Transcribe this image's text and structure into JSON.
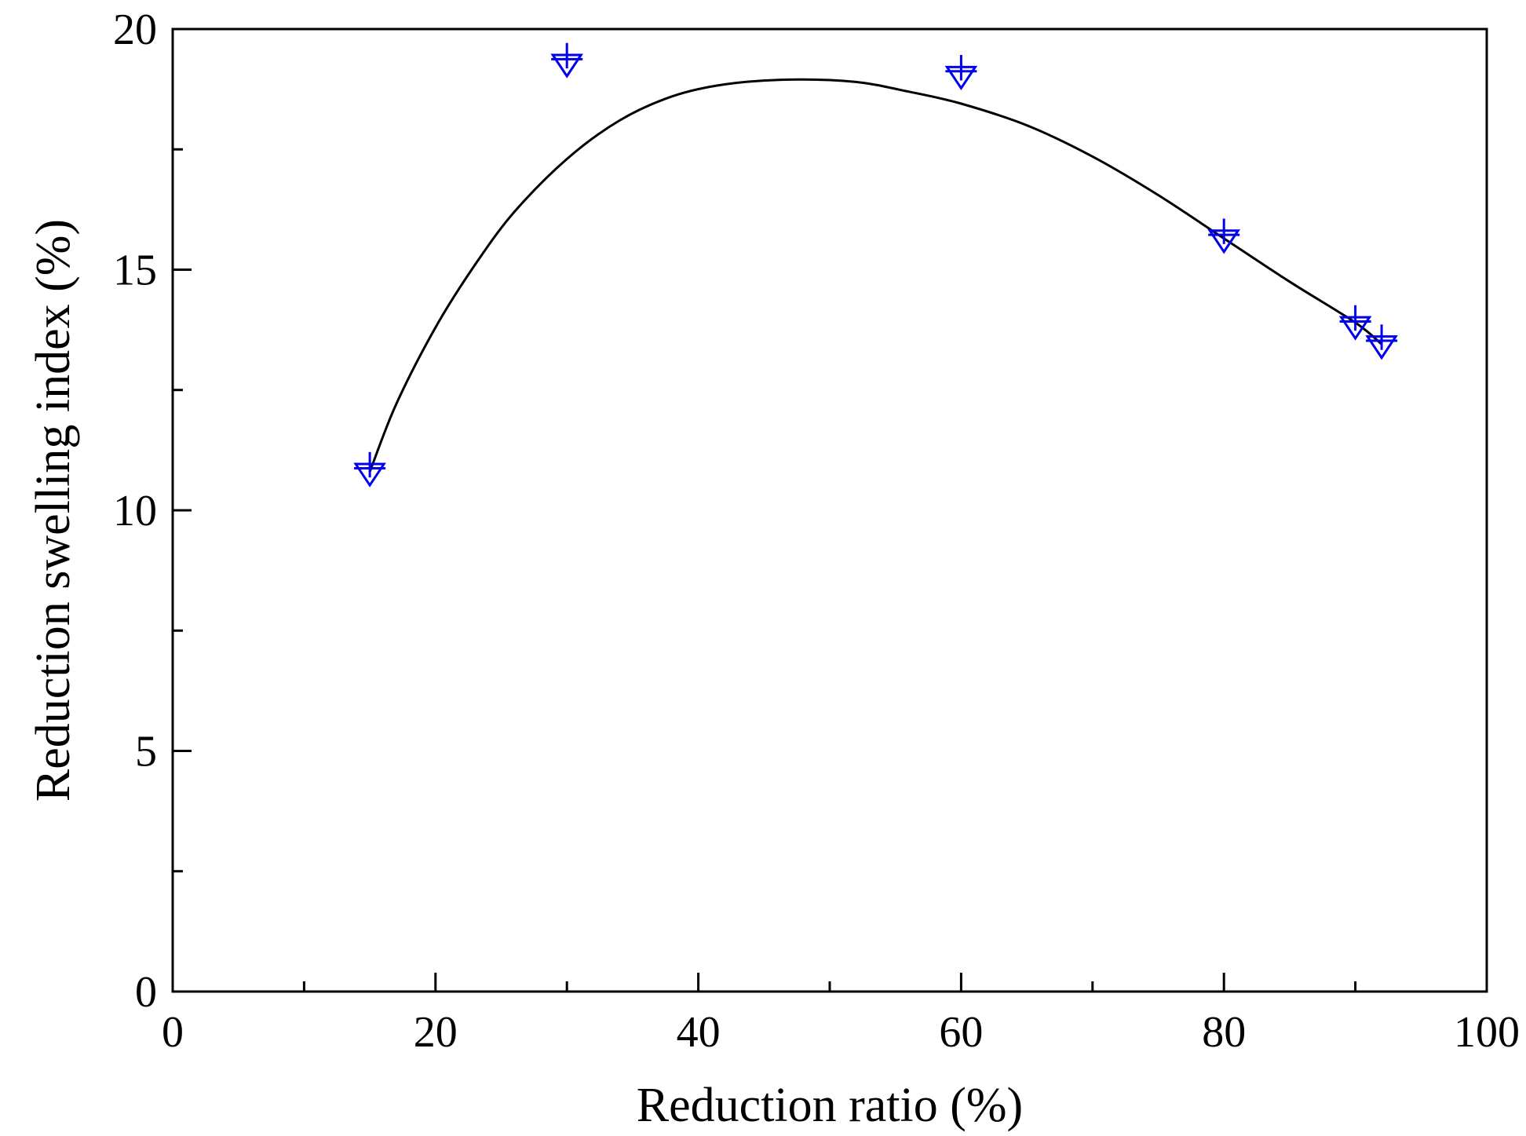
{
  "chart_data": {
    "type": "scatter",
    "title": "",
    "xlabel": "Reduction ratio (%)",
    "ylabel": "Reduction swelling index (%)",
    "xlim": [
      0,
      100
    ],
    "ylim": [
      0,
      20
    ],
    "x_major_ticks": [
      0,
      20,
      40,
      60,
      80,
      100
    ],
    "x_minor_ticks": [
      10,
      30,
      50,
      70,
      90
    ],
    "y_major_ticks": [
      0,
      5,
      10,
      15,
      20
    ],
    "y_minor_ticks": [
      2.5,
      7.5,
      12.5,
      17.5
    ],
    "grid": false,
    "legend": "none",
    "series": [
      {
        "name": "measured",
        "marker": "triangle-down-plus",
        "color": "#0000ee",
        "x": [
          15,
          30,
          60,
          80,
          90,
          92
        ],
        "y": [
          10.8,
          19.3,
          19.05,
          15.65,
          13.85,
          13.45
        ]
      },
      {
        "name": "fit",
        "style": "line",
        "color": "#000000",
        "x": [
          15,
          17,
          20,
          23,
          26,
          30,
          34,
          38,
          42,
          47,
          52,
          56,
          60,
          65,
          70,
          75,
          80,
          85,
          90,
          92
        ],
        "y": [
          10.8,
          12.2,
          13.8,
          15.1,
          16.2,
          17.3,
          18.1,
          18.6,
          18.85,
          18.95,
          18.9,
          18.7,
          18.45,
          18.0,
          17.35,
          16.55,
          15.65,
          14.75,
          13.9,
          13.45
        ]
      }
    ]
  }
}
